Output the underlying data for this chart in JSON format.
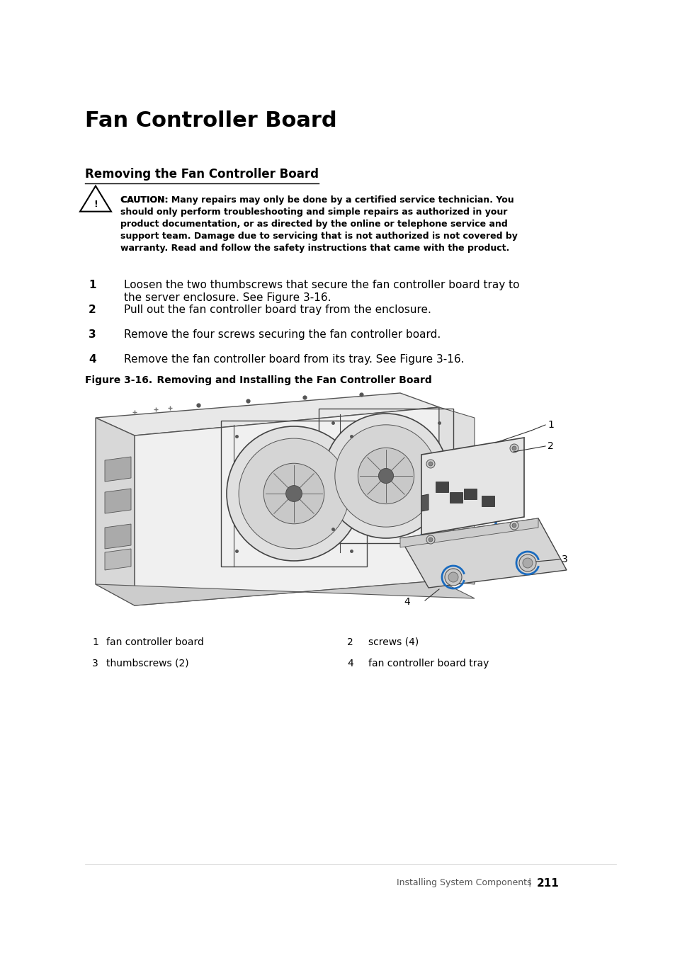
{
  "title": "Fan Controller Board",
  "subtitle": "Removing the Fan Controller Board",
  "caution_label": "CAUTION:",
  "caution_text": " Many repairs may only be done by a certified service technician. You\nshould only perform troubleshooting and simple repairs as authorized in your\nproduct documentation, or as directed by the online or telephone service and\nsupport team. Damage due to servicing that is not authorized is not covered by\nwarranty. Read and follow the safety instructions that came with the product.",
  "steps": [
    {
      "num": "1",
      "text": "Loosen the two thumbscrews that secure the fan controller board tray to\nthe server enclosure. See Figure 3-16."
    },
    {
      "num": "2",
      "text": "Pull out the fan controller board tray from the enclosure."
    },
    {
      "num": "3",
      "text": "Remove the four screws securing the fan controller board."
    },
    {
      "num": "4",
      "text": "Remove the fan controller board from its tray. See Figure 3-16."
    }
  ],
  "figure_label": "Figure 3-16.",
  "figure_title": "    Removing and Installing the Fan Controller Board",
  "legend": [
    {
      "num": "1",
      "col": 0,
      "text": "fan controller board"
    },
    {
      "num": "2",
      "col": 1,
      "text": "screws (4)"
    },
    {
      "num": "3",
      "col": 0,
      "text": "thumbscrews (2)"
    },
    {
      "num": "4",
      "col": 1,
      "text": "fan controller board tray"
    }
  ],
  "footer_text": "Installing System Components",
  "footer_pipe": "|",
  "footer_page": "211",
  "bg_color": "#ffffff",
  "text_color": "#000000"
}
